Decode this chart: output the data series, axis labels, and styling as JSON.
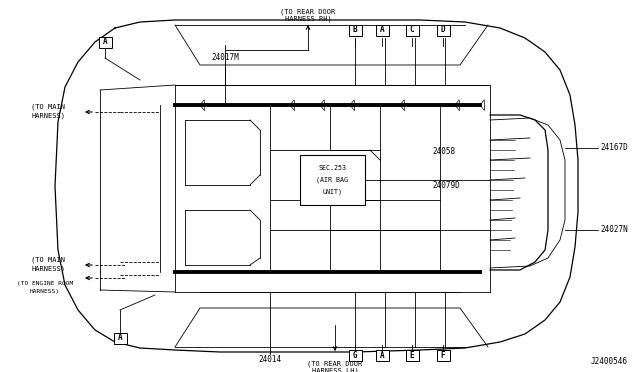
{
  "bg_color": "#ffffff",
  "line_color": "#000000",
  "diagram_id": "J2400546",
  "connectors_top": [
    "B",
    "A",
    "C",
    "D"
  ],
  "connectors_bottom": [
    "G",
    "A",
    "E",
    "F"
  ],
  "labels_top_arrow": [
    "(TO REAR DOOR",
    "HARNESS RH)"
  ],
  "labels_bottom_arrow": [
    "(TO REAR DOOR",
    "HARNESS LH)"
  ],
  "label_main_harness_top": [
    "(TO MAIN",
    "HARNESS)"
  ],
  "label_main_harness_bot": [
    "(TO MAIN",
    "HARNESS)"
  ],
  "label_engine_harness": [
    "(TO ENGINE ROOM",
    "HARNESS)"
  ],
  "part_24017M": "24017M",
  "part_24014": "24014",
  "part_24058": "24058",
  "part_24079D": "24079D",
  "part_24167D": "24167D",
  "part_24027N": "24027N",
  "sec_label": [
    "SEC.253",
    "(AIR BAG",
    "UNIT)"
  ]
}
